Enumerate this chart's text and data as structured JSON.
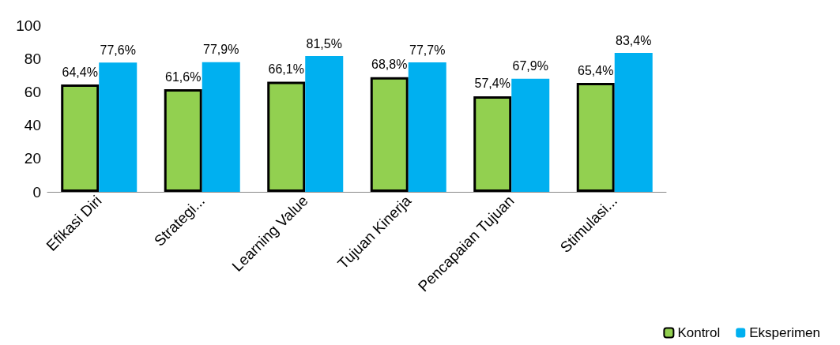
{
  "chart_data": {
    "type": "bar",
    "categories": [
      "Efikasi Diri",
      "Strategi...",
      "Learning Value",
      "Tujuan Kinerja",
      "Pencapaian Tujuan",
      "Stimulasi..."
    ],
    "series": [
      {
        "name": "Kontrol",
        "color": "#92d050",
        "values": [
          64.4,
          61.6,
          66.1,
          68.8,
          57.4,
          65.4
        ],
        "value_labels": [
          "64,4%",
          "61,6%",
          "66,1%",
          "68,8%",
          "57,4%",
          "65,4%"
        ]
      },
      {
        "name": "Eksperimen",
        "color": "#00b0f0",
        "values": [
          77.6,
          77.9,
          81.5,
          77.7,
          67.9,
          83.4
        ],
        "value_labels": [
          "77,6%",
          "77,9%",
          "81,5%",
          "77,7%",
          "67,9%",
          "83,4%"
        ]
      }
    ],
    "ylim": [
      0,
      100
    ],
    "yticks": [
      0,
      20,
      40,
      60,
      80,
      100
    ],
    "grid": false,
    "legend": "bottom right"
  }
}
